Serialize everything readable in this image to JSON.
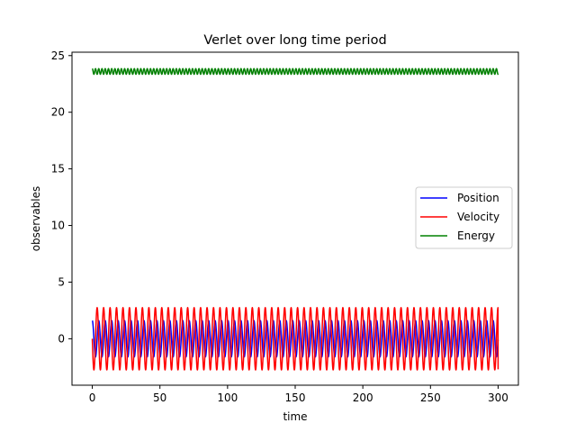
{
  "chart_data": {
    "type": "line",
    "title": "Verlet over long time period",
    "xlabel": "time",
    "ylabel": "observables",
    "xlim": [
      -15,
      315
    ],
    "ylim": [
      -4.1,
      25.3
    ],
    "xticks": [
      0,
      50,
      100,
      150,
      200,
      250,
      300
    ],
    "xtick_labels": [
      "0",
      "50",
      "100",
      "150",
      "200",
      "250",
      "300"
    ],
    "yticks": [
      0,
      5,
      10,
      15,
      20,
      25
    ],
    "ytick_labels": [
      "0",
      "5",
      "10",
      "15",
      "20",
      "25"
    ],
    "grid": false,
    "legend_position": "center-right",
    "x_range": [
      0,
      300
    ],
    "period": 4.78,
    "series": [
      {
        "name": "Position",
        "color": "#0000ff",
        "function": "1.6 * cos(omega * t)",
        "amplitude": 1.6,
        "offset": 0,
        "phase": 0,
        "end_value": -0.2
      },
      {
        "name": "Velocity",
        "color": "#ff0000",
        "function": "-2.75 * sin(omega * t)",
        "amplitude": 2.75,
        "offset": 0,
        "phase": 0,
        "end_value": -2.7
      },
      {
        "name": "Energy",
        "color": "#008000",
        "function": "23.6 + 0.25 * cos(2 * omega * t)",
        "amplitude": 0.25,
        "offset": 23.6,
        "phase": 0,
        "end_value": 23.3
      }
    ]
  }
}
